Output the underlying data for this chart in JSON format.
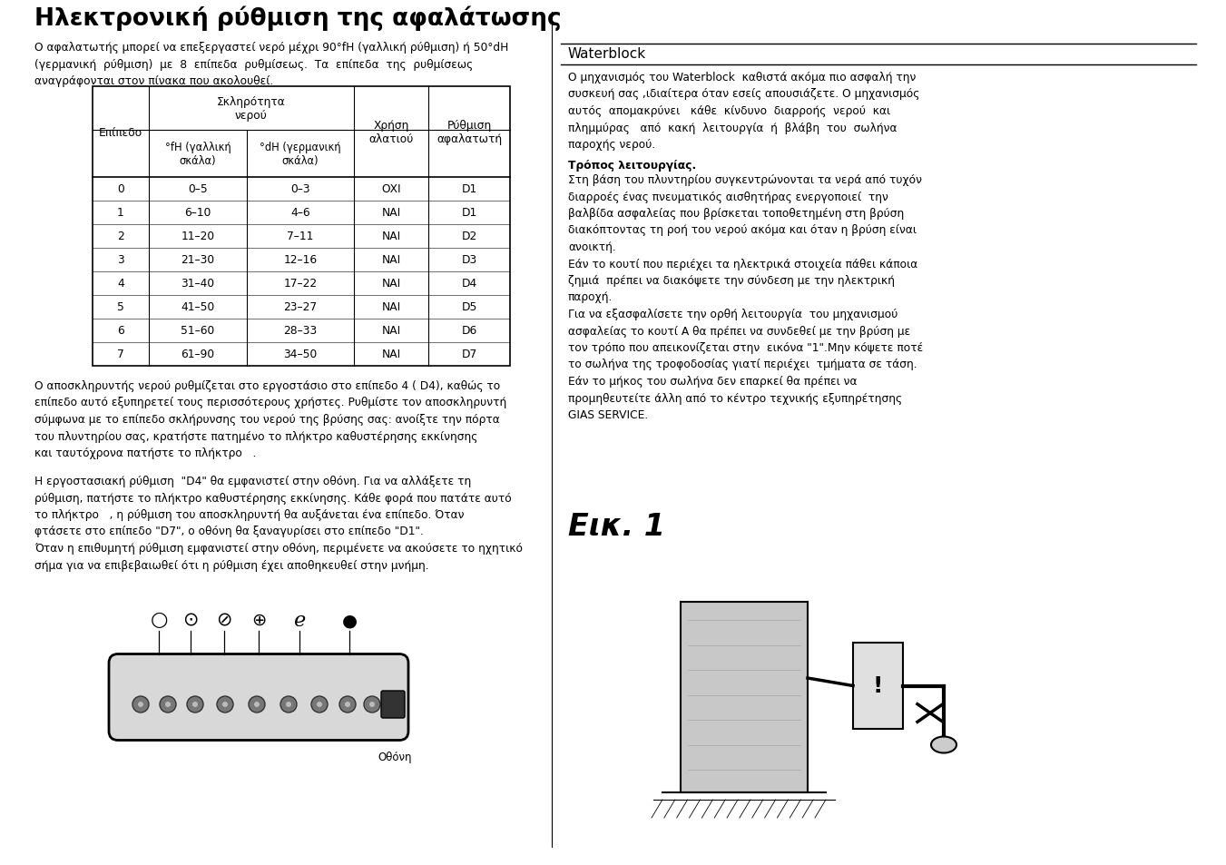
{
  "title_left": "Ηλεκτρονική ρύθμιση της αφαλάτωσης",
  "waterblock_header": "Waterblock",
  "bg_color": "#ffffff",
  "left_para1_line1": "Ο αφαλατωτής μπορεί να επεξεργαστεί νερό μέχρι 90°fH (γαλλική ρύθμιση) ή 50°dH",
  "left_para1_line2": "(γερμανική  ρύθμιση)  με  8  επίπεδα  ρυθμίσεως.  Τα  επίπεδα  της  ρυθμίσεως",
  "left_para1_line3": "αναγράφονται στον πίνακα που ακολουθεί.",
  "table_col1_header": "Επίπεδο",
  "table_col23_header": "Σκληρότητα\nνερού",
  "table_col4_header": "Χρήση\nαλατιού",
  "table_col5_header": "Ρύθμιση\nαφαλατωτή",
  "table_col2_subheader": "°fH (γαλλική\nσκάλα)",
  "table_col3_subheader": "°dH (γερμανική\nσκάλα)",
  "table_data": [
    [
      "0",
      "0–5",
      "0–3",
      "ΟΧΙ",
      "D1"
    ],
    [
      "1",
      "6–10",
      "4–6",
      "ΝΑΙ",
      "D1"
    ],
    [
      "2",
      "11–20",
      "7–11",
      "ΝΑΙ",
      "D2"
    ],
    [
      "3",
      "21–30",
      "12–16",
      "ΝΑΙ",
      "D3"
    ],
    [
      "4",
      "31–40",
      "17–22",
      "ΝΑΙ",
      "D4"
    ],
    [
      "5",
      "41–50",
      "23–27",
      "ΝΑΙ",
      "D5"
    ],
    [
      "6",
      "51–60",
      "28–33",
      "ΝΑΙ",
      "D6"
    ],
    [
      "7",
      "61–90",
      "34–50",
      "ΝΑΙ",
      "D7"
    ]
  ],
  "left_para2": "Ο αποσκληρυντής νερού ρυθμίζεται στο εργοστάσιο στο επίπεδο 4 ( D4), καθώς το\nεπίπεδο αυτό εξυπηρετεί τους περισσότερους χρήστες. Ρυθμίστε τον αποσκληρυντή\nσύμφωνα με το επίπεδο σκλήρυνσης του νερού της βρύσης σας: ανοίξτε την πόρτα\nτου πλυντηρίου σας, κρατήστε πατημένο το πλήκτρο καθυστέρησης εκκίνησης\nκαι ταυτόχρονα πατήστε το πλήκτρο   .",
  "left_para3": "Η εργοστασιακή ρύθμιση  \"D4\" θα εμφανιστεί στην οθόνη. Για να αλλάξετε τη\nρύθμιση, πατήστε το πλήκτρο καθυστέρησης εκκίνησης. Κάθε φορά που πατάτε αυτό\nτο πλήκτρο   , η ρύθμιση του αποσκληρυντή θα αυξάνεται ένα επίπεδο. Όταν\nφτάσετε στο επίπεδο \"D7\", ο οθόνη θα ξαναγυρίσει στο επίπεδο \"D1\".\nΌταν η επιθυμητή ρύθμιση εμφανιστεί στην οθόνη, περιμένετε να ακούσετε το ηχητικό\nσήμα για να επιβεβαιωθεί ότι η ρύθμιση έχει αποθηκευθεί στην μνήμη.",
  "right_para1": "Ο μηχανισμός του Waterblock  καθιστά ακόμα πιο ασφαλή την\nσυσκευή σας ,ιδιαίτερα όταν εσείς απουσιάζετε. Ο μηχανισμός\nαυτός  απομακρύνει   κάθε  κίνδυνο  διαρροής  νερού  και\nπλημμύρας   από  κακή  λειτουργία  ή  βλάβη  του  σωλήνα\nπαροχής νερού.",
  "right_bold_header": "Τρόπος λειτουργίας.",
  "right_para2": "Στη βάση του πλυντηρίου συγκεντρώνονται τα νερά από τυχόν\nδιαρροές ένας πνευματικός αισθητήρας ενεργοποιεί  την\nβαλβίδα ασφαλείας που βρίσκεται τοποθετημένη στη βρύση\nδιακόπτοντας τη ροή του νερού ακόμα και όταν η βρύση είναι\nανοικτή.\nΕάν το κουτί που περιέχει τα ηλεκτρικά στοιχεία πάθει κάποια\nζημιά  πρέπει να διακόψετε την σύνδεση με την ηλεκτρική\nπαροχή.\nΓια να εξασφαλίσετε την ορθή λειτουργία  του μηχανισμού\nασφαλείας το κουτί Α θα πρέπει να συνδεθεί με την βρύση με\nτον τρόπο που απεικονίζεται στην  εικόνα \"1\".Μην κόψετε ποτέ\nτο σωλήνα της τροφοδοσίας γιατί περιέχει  τμήματα σε τάση.\nΕάν το μήκος του σωλήνα δεν επαρκεί θα πρέπει να\nπρομηθευτείτε άλλη από το κέντρο τεχνικής εξυπηρέτησης\nGIAS SERVICE.",
  "fig_label": "Εικ. 1",
  "odoni_label": "Οθόνη"
}
